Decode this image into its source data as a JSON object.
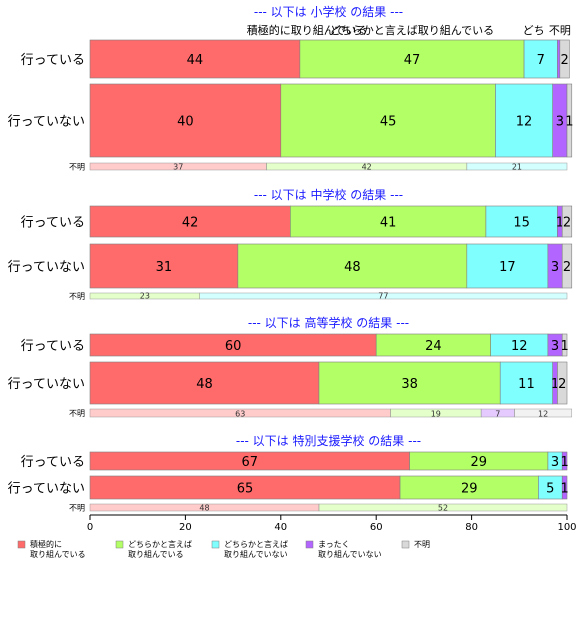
{
  "chart_data": {
    "type": "bar",
    "orientation": "horizontal",
    "stacked": true,
    "xlim": [
      0,
      100
    ],
    "x_ticks": [
      0,
      20,
      40,
      60,
      80,
      100
    ],
    "grid": false,
    "legend_position": "bottom-left",
    "series": [
      {
        "name": "積極的に\n取り組んでいる",
        "color": "#FF6B6B"
      },
      {
        "name": "どちらかと言えば\n取り組んでいる",
        "color": "#B3FF66"
      },
      {
        "name": "どちらかと言えば\n取り組んでいない",
        "color": "#80FFFF"
      },
      {
        "name": "まったく\n取り組んでいない",
        "color": "#B366FF"
      },
      {
        "name": "不明",
        "color": "#D9D9D9"
      }
    ],
    "top_labels": [
      "積極的に取り組んでいる",
      "どちらかと言えば取り組んでいる",
      "どち",
      "不明"
    ],
    "panels": [
      {
        "title": "--- 以下は 小学校 の結果 ---",
        "rows": [
          {
            "label": "行っている",
            "values": [
              44,
              47,
              7,
              0.5,
              2
            ]
          },
          {
            "label": "行っていない",
            "values": [
              40,
              45,
              12,
              3,
              1
            ]
          }
        ],
        "unknown": {
          "label": "不明",
          "values": [
            37,
            42,
            21,
            0,
            0
          ]
        }
      },
      {
        "title": "--- 以下は 中学校 の結果 ---",
        "rows": [
          {
            "label": "行っている",
            "values": [
              42,
              41,
              15,
              1,
              2
            ]
          },
          {
            "label": "行っていない",
            "values": [
              31,
              48,
              17,
              3,
              2
            ]
          }
        ],
        "unknown": {
          "label": "不明",
          "values": [
            0,
            23,
            77,
            0,
            0
          ]
        }
      },
      {
        "title": "--- 以下は 高等学校 の結果 ---",
        "rows": [
          {
            "label": "行っている",
            "values": [
              60,
              24,
              12,
              3,
              1
            ]
          },
          {
            "label": "行っていない",
            "values": [
              48,
              38,
              11,
              1,
              2
            ]
          }
        ],
        "unknown": {
          "label": "不明",
          "values": [
            63,
            19,
            0,
            7,
            12
          ]
        }
      },
      {
        "title": "--- 以下は 特別支援学校 の結果 ---",
        "rows": [
          {
            "label": "行っている",
            "values": [
              67,
              29,
              3,
              1,
              0
            ]
          },
          {
            "label": "行っていない",
            "values": [
              65,
              29,
              5,
              1,
              0
            ]
          }
        ],
        "unknown": {
          "label": "不明",
          "values": [
            48,
            52,
            0,
            0,
            0
          ]
        }
      }
    ]
  }
}
